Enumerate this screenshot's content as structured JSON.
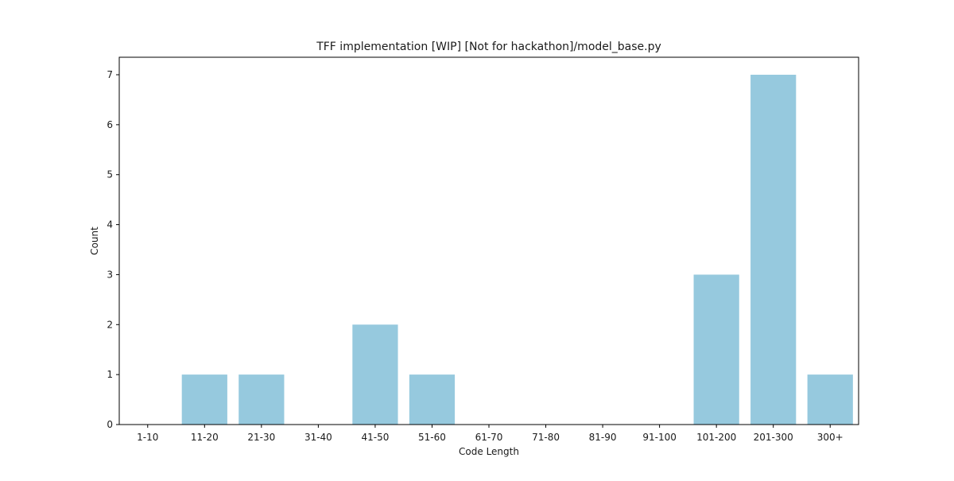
{
  "chart_data": {
    "type": "bar",
    "title": "TFF implementation [WIP] [Not for hackathon]/model_base.py",
    "xlabel": "Code Length",
    "ylabel": "Count",
    "categories": [
      "1-10",
      "11-20",
      "21-30",
      "31-40",
      "41-50",
      "51-60",
      "61-70",
      "71-80",
      "81-90",
      "91-100",
      "101-200",
      "201-300",
      "300+"
    ],
    "values": [
      0,
      1,
      1,
      0,
      2,
      1,
      0,
      0,
      0,
      0,
      3,
      7,
      1
    ],
    "ylim": [
      0,
      7.35
    ],
    "yticks": [
      "0",
      "1",
      "2",
      "3",
      "4",
      "5",
      "6",
      "7"
    ],
    "bar_color": "#96c9de",
    "grid": false,
    "legend": "none"
  }
}
